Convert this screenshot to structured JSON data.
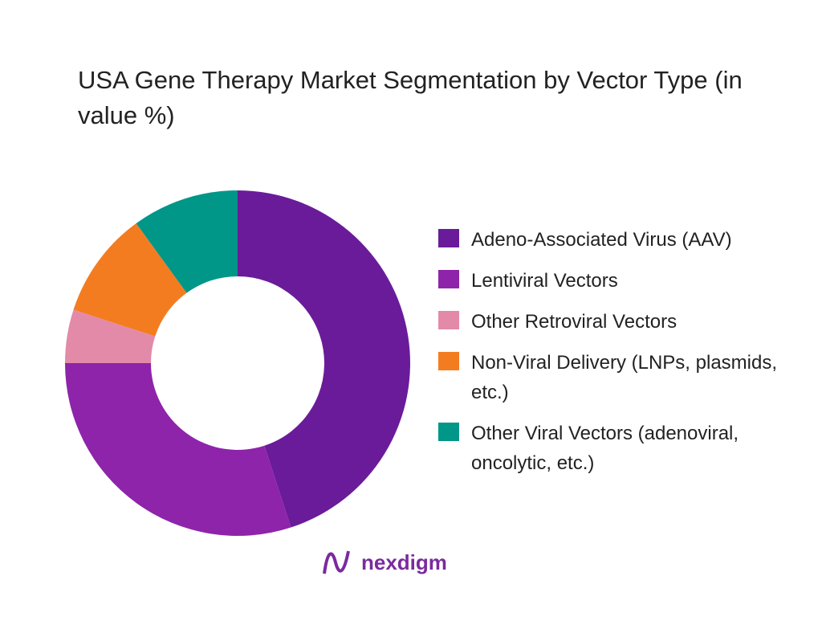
{
  "chart_data": {
    "type": "donut",
    "title": "USA Gene Therapy Market Segmentation by Vector Type (in value %)",
    "categories": [
      "Adeno-Associated Virus (AAV)",
      "Lentiviral Vectors",
      "Other Retroviral Vectors",
      "Non-Viral Delivery (LNPs, plasmids, etc.)",
      "Other Viral Vectors (adenoviral, oncolytic, etc.)"
    ],
    "values": [
      45,
      30,
      5,
      10,
      10
    ],
    "colors": [
      "#6a1b9a",
      "#8e24aa",
      "#e38aa8",
      "#f47c20",
      "#009688"
    ],
    "legend": "right"
  },
  "logo": {
    "text": "nexdigm"
  }
}
